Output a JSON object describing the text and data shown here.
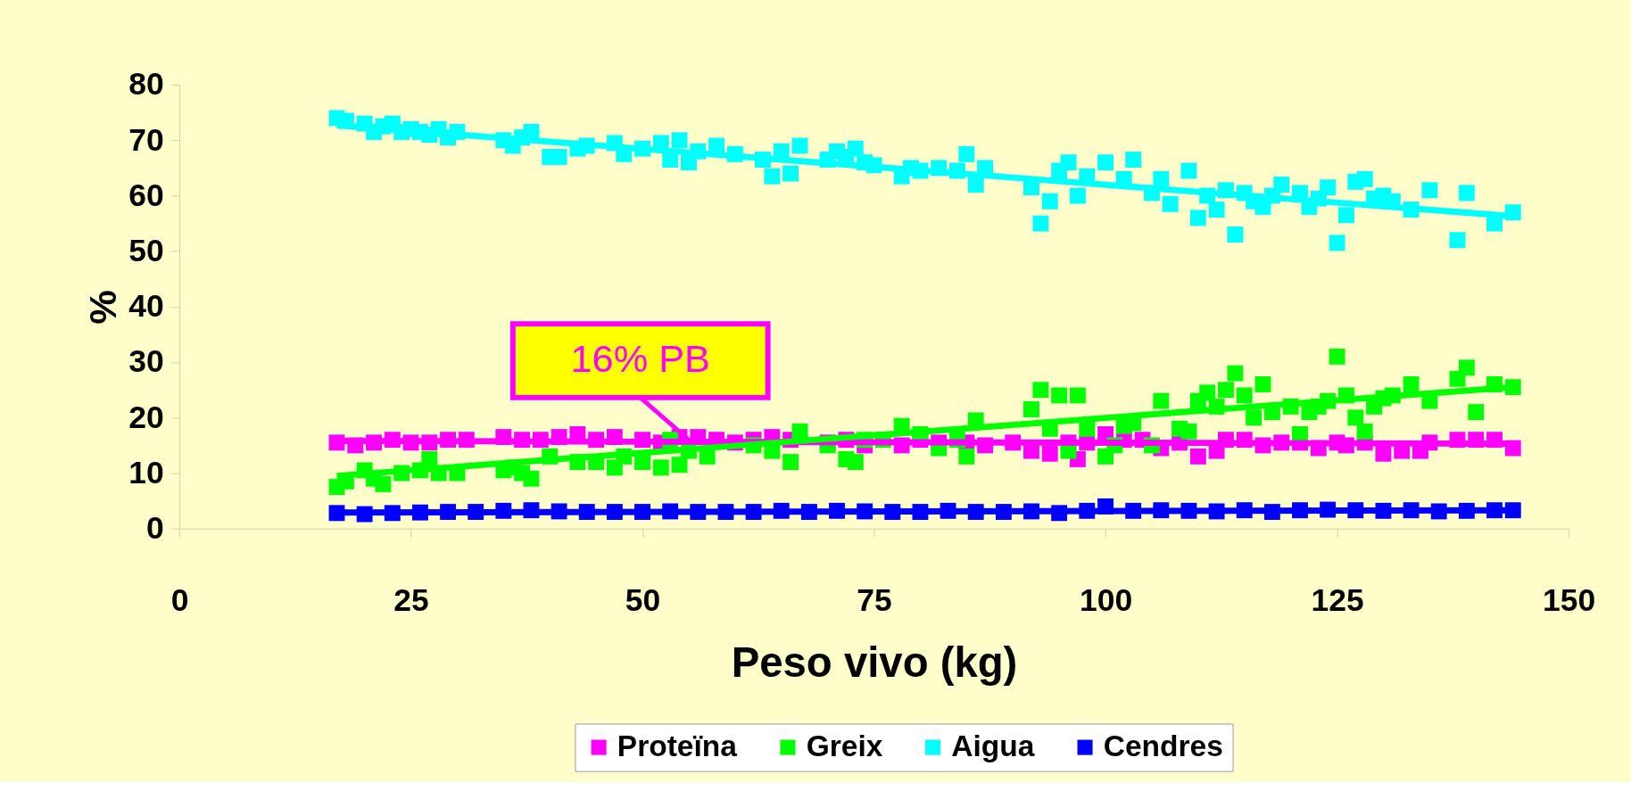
{
  "chart_data": {
    "type": "scatter",
    "xlabel": "Peso vivo (kg)",
    "ylabel": "%",
    "xlim": [
      0,
      150
    ],
    "xticks": [
      0,
      25,
      50,
      75,
      100,
      125,
      150
    ],
    "ylim": [
      0,
      80
    ],
    "yticks": [
      0,
      10,
      20,
      30,
      40,
      50,
      60,
      70,
      80
    ],
    "grid": false,
    "legend": "bottom",
    "marker": "square",
    "annotations": [
      {
        "text": "16% PB",
        "x": 55,
        "y": 16
      }
    ],
    "series": [
      {
        "name": "Proteïna",
        "color": "#ff00ff",
        "x": [
          17,
          19,
          21,
          23,
          25,
          27,
          29,
          31,
          35,
          37,
          39,
          41,
          43,
          45,
          47,
          50,
          52,
          54,
          56,
          58,
          60,
          62,
          64,
          66,
          70,
          72,
          74,
          78,
          80,
          82,
          85,
          87,
          90,
          92,
          94,
          96,
          97,
          98,
          100,
          102,
          104,
          106,
          108,
          110,
          112,
          113,
          115,
          117,
          119,
          121,
          123,
          125,
          126,
          128,
          130,
          132,
          134,
          135,
          138,
          140,
          142,
          144
        ],
        "values": [
          15.5,
          15,
          15.5,
          16,
          15.5,
          15.5,
          16,
          16,
          16.5,
          16,
          16,
          16.5,
          17,
          16,
          16.5,
          16,
          15.5,
          16.5,
          16.5,
          16,
          15.5,
          16,
          16.5,
          16,
          15.5,
          16,
          15,
          15,
          16,
          15.5,
          15.5,
          15,
          15.5,
          14,
          13.5,
          15.5,
          12.5,
          15.5,
          17,
          16,
          16,
          14.5,
          15.5,
          13,
          14,
          16,
          16,
          15,
          15.5,
          15.5,
          14.5,
          15.5,
          15,
          15.5,
          13.5,
          14,
          14,
          15.5,
          16,
          16,
          16,
          14.5
        ]
      },
      {
        "name": "Greix",
        "color": "#00ff00",
        "x": [
          17,
          18,
          20,
          21,
          22,
          24,
          26,
          27,
          28,
          30,
          35,
          36,
          37,
          38,
          40,
          43,
          45,
          47,
          48,
          50,
          52,
          53,
          54,
          55,
          57,
          62,
          64,
          66,
          67,
          70,
          72,
          73,
          74,
          76,
          78,
          80,
          82,
          84,
          85,
          86,
          92,
          93,
          94,
          95,
          96,
          97,
          98,
          100,
          101,
          102,
          103,
          105,
          106,
          108,
          109,
          110,
          111,
          112,
          113,
          114,
          115,
          116,
          117,
          118,
          120,
          121,
          122,
          123,
          124,
          125,
          126,
          127,
          128,
          129,
          130,
          131,
          133,
          135,
          138,
          139,
          140,
          142,
          144
        ],
        "values": [
          7.5,
          8.5,
          10.5,
          9,
          8,
          10,
          10.5,
          12.5,
          10,
          10,
          10.5,
          11,
          10,
          9,
          13,
          12,
          12,
          11,
          13,
          12,
          11,
          16,
          11.5,
          14,
          13,
          15,
          14,
          12,
          17.5,
          15,
          12.5,
          12,
          16,
          16,
          18.5,
          17,
          14.5,
          16,
          13,
          19.5,
          21.5,
          25,
          18,
          24,
          14,
          24,
          18,
          13,
          15,
          18.5,
          19,
          15,
          23,
          18,
          17.5,
          23,
          24.5,
          22,
          25,
          28,
          24,
          20,
          26,
          21,
          22,
          17,
          21,
          22,
          23,
          31,
          24,
          20,
          17.5,
          22,
          23.5,
          24,
          26,
          23,
          27,
          29,
          21,
          26,
          25.5
        ]
      },
      {
        "name": "Aigua",
        "color": "#00ffff",
        "x": [
          17,
          18,
          20,
          21,
          22,
          23,
          24,
          25,
          26,
          27,
          28,
          29,
          30,
          35,
          36,
          37,
          38,
          40,
          41,
          43,
          44,
          47,
          48,
          50,
          52,
          53,
          54,
          55,
          56,
          58,
          60,
          63,
          64,
          65,
          66,
          67,
          70,
          71,
          72,
          73,
          74,
          75,
          78,
          79,
          80,
          82,
          84,
          85,
          86,
          87,
          92,
          93,
          94,
          95,
          96,
          97,
          98,
          100,
          102,
          103,
          105,
          106,
          107,
          109,
          110,
          111,
          112,
          113,
          114,
          115,
          116,
          117,
          118,
          119,
          121,
          122,
          123,
          124,
          125,
          126,
          127,
          128,
          129,
          130,
          131,
          133,
          135,
          138,
          139,
          142,
          144
        ],
        "values": [
          74,
          73.5,
          73,
          71.5,
          72.5,
          73,
          71.5,
          72,
          71.5,
          71,
          72,
          70.5,
          71.5,
          70,
          69,
          70.5,
          71.5,
          67,
          67,
          68.5,
          69,
          69.5,
          67.5,
          68.5,
          69.5,
          66.5,
          70,
          66,
          68,
          69,
          67.5,
          66.5,
          63.5,
          68,
          64,
          69,
          66.5,
          68,
          67,
          68.5,
          66,
          65.5,
          63.5,
          65,
          64.5,
          65,
          64.5,
          67.5,
          62,
          65,
          61.5,
          55,
          59,
          64.5,
          66,
          60,
          63.5,
          66,
          63,
          66.5,
          60.5,
          63,
          58.5,
          64.5,
          56,
          60,
          57.5,
          61,
          53,
          60.5,
          59,
          58,
          60,
          62,
          60.5,
          58,
          59.5,
          61.5,
          51.5,
          56.5,
          62.5,
          63,
          59.5,
          60,
          59,
          57.5,
          61,
          52,
          60.5,
          55,
          57
        ]
      },
      {
        "name": "Cendres",
        "color": "#0000ff",
        "x": [
          17,
          20,
          23,
          26,
          29,
          32,
          35,
          38,
          41,
          44,
          47,
          50,
          53,
          56,
          59,
          62,
          65,
          68,
          71,
          74,
          77,
          80,
          83,
          86,
          89,
          92,
          95,
          98,
          100,
          103,
          106,
          109,
          112,
          115,
          118,
          121,
          124,
          127,
          130,
          133,
          136,
          139,
          142,
          144
        ],
        "values": [
          2.8,
          2.6,
          2.8,
          2.9,
          3,
          3,
          3.2,
          3.3,
          3.1,
          3,
          3,
          3,
          3.1,
          3,
          3,
          3,
          3.2,
          3,
          3.2,
          3.1,
          3,
          3,
          3.2,
          3,
          3,
          3.1,
          2.8,
          3.2,
          4,
          3.2,
          3.3,
          3.2,
          3.1,
          3.3,
          3,
          3.3,
          3.4,
          3.3,
          3.2,
          3.3,
          3.1,
          3.2,
          3.3,
          3.3
        ]
      },
      {
        "type": "line",
        "marker": "none",
        "line_style": "solid",
        "color": "#ff00ff",
        "x": [
          17,
          144
        ],
        "values": [
          15.8,
          15.3
        ]
      },
      {
        "type": "line",
        "marker": "none",
        "line_style": "solid",
        "color": "#00ff00",
        "x": [
          17,
          144
        ],
        "values": [
          9.5,
          25.5
        ]
      },
      {
        "type": "line",
        "marker": "none",
        "line_style": "solid",
        "color": "#00ffff",
        "x": [
          17,
          144
        ],
        "values": [
          72.7,
          56.3
        ]
      },
      {
        "type": "line",
        "marker": "none",
        "line_style": "solid",
        "color": "#0000ff",
        "x": [
          17,
          144
        ],
        "values": [
          2.9,
          3.3
        ]
      }
    ]
  }
}
